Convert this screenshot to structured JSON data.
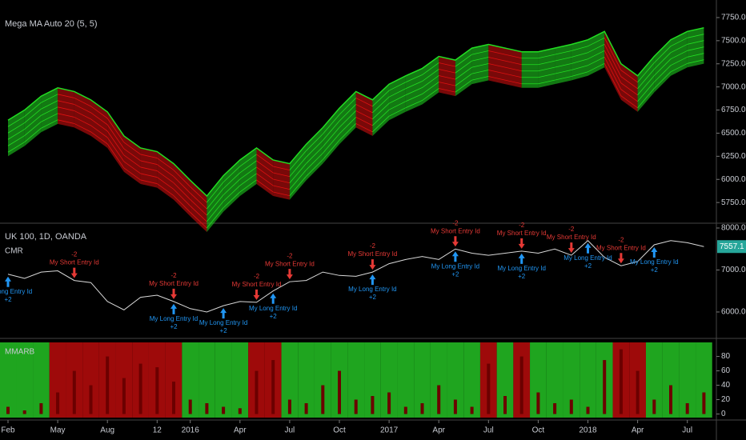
{
  "chart_data": [
    {
      "type": "ribbon",
      "title": "Mega MA Auto 20 (5, 5)",
      "values": [
        6640,
        6750,
        6900,
        6990,
        6950,
        6860,
        6730,
        6470,
        6340,
        6300,
        6170,
        5990,
        5820,
        6040,
        6210,
        6340,
        6210,
        6170,
        6380,
        6560,
        6770,
        6950,
        6860,
        7030,
        7120,
        7200,
        7330,
        7290,
        7420,
        7460,
        7420,
        7380,
        7380,
        7420,
        7460,
        7510,
        7600,
        7250,
        7120,
        7330,
        7510,
        7600,
        7640
      ],
      "up_color": "#22dd22",
      "down_color": "#dd1111",
      "ylim": [
        5535,
        7940
      ],
      "yticks": [
        {
          "value": 5750,
          "label": "5750.0"
        },
        {
          "value": 6000,
          "label": "6000.0"
        },
        {
          "value": 6250,
          "label": "6250.0"
        },
        {
          "value": 6500,
          "label": "6500.0"
        },
        {
          "value": 6750,
          "label": "6750.0"
        },
        {
          "value": 7000,
          "label": "7000.0"
        },
        {
          "value": 7250,
          "label": "7250.0"
        },
        {
          "value": 7500,
          "label": "7500.0"
        },
        {
          "value": 7750,
          "label": "7750.0"
        }
      ]
    },
    {
      "type": "line",
      "title": "UK 100, 1D, OANDA",
      "subtitle": "CMR",
      "values": [
        6900,
        6800,
        6950,
        6980,
        6750,
        6700,
        6250,
        6050,
        6350,
        6400,
        6250,
        6080,
        6000,
        6150,
        6250,
        6230,
        6500,
        6720,
        6750,
        6950,
        6870,
        6850,
        6950,
        7150,
        7250,
        7320,
        7250,
        7500,
        7400,
        7350,
        7400,
        7450,
        7400,
        7500,
        7350,
        7700,
        7300,
        7100,
        7200,
        7600,
        7700,
        7650,
        7557.1
      ],
      "color": "#d8d8d8",
      "badge_color": "#26a69a",
      "ylim": [
        5390,
        8095
      ],
      "yticks": [
        {
          "value": 6000,
          "label": "6000.0"
        },
        {
          "value": 7000,
          "label": "7000.0"
        },
        {
          "value": 8000,
          "label": "8000.0"
        }
      ],
      "short_color": "#e53935",
      "long_color": "#2196f3",
      "signals": [
        {
          "i": 0,
          "side": "long",
          "label": "My Long Entry Id",
          "qty": "+2"
        },
        {
          "i": 4,
          "side": "short",
          "label": "My Short Entry Id",
          "qty": "-2"
        },
        {
          "i": 10,
          "side": "short",
          "label": "My Short Entry Id",
          "qty": "-2"
        },
        {
          "i": 10,
          "side": "long",
          "label": "My Long Entry Id",
          "qty": "+2"
        },
        {
          "i": 13,
          "side": "long",
          "label": "My Long Entry Id",
          "qty": "+2"
        },
        {
          "i": 15,
          "side": "short",
          "label": "My Short Entry Id",
          "qty": "-2"
        },
        {
          "i": 16,
          "side": "long",
          "label": "My Long Entry Id",
          "qty": "+2"
        },
        {
          "i": 17,
          "side": "short",
          "label": "My Short Entry Id",
          "qty": "-2"
        },
        {
          "i": 22,
          "side": "short",
          "label": "My Short Entry Id",
          "qty": "-2"
        },
        {
          "i": 22,
          "side": "long",
          "label": "My Long Entry Id",
          "qty": "+2"
        },
        {
          "i": 27,
          "side": "short",
          "label": "My Short Entry Id",
          "qty": "-2"
        },
        {
          "i": 27,
          "side": "long",
          "label": "My Long Entry Id",
          "qty": "+2"
        },
        {
          "i": 31,
          "side": "short",
          "label": "My Short Entry Id",
          "qty": "-2"
        },
        {
          "i": 31,
          "side": "long",
          "label": "My Long Entry Id",
          "qty": "+2"
        },
        {
          "i": 34,
          "side": "short",
          "label": "My Short Entry Id",
          "qty": "-2"
        },
        {
          "i": 35,
          "side": "long",
          "label": "My Long Entry Id",
          "qty": "+2"
        },
        {
          "i": 37,
          "side": "short",
          "label": "My Short Entry Id",
          "qty": "-2"
        },
        {
          "i": 39,
          "side": "long",
          "label": "My Long Entry Id",
          "qty": "+2"
        }
      ]
    },
    {
      "type": "bar",
      "title": "MMARB",
      "categories": [
        "Feb",
        null,
        null,
        "May",
        null,
        null,
        "Aug",
        null,
        null,
        "12",
        null,
        "2016",
        null,
        null,
        "Apr",
        null,
        null,
        "Jul",
        null,
        null,
        "Oct",
        null,
        null,
        "2017",
        null,
        null,
        "Apr",
        null,
        null,
        "Jul",
        null,
        null,
        "Oct",
        null,
        null,
        "2018",
        null,
        null,
        "Apr",
        null,
        null,
        "Jul",
        null
      ],
      "values": [
        10,
        5,
        15,
        30,
        60,
        40,
        80,
        50,
        70,
        65,
        45,
        20,
        15,
        10,
        8,
        60,
        75,
        20,
        15,
        40,
        60,
        20,
        25,
        30,
        10,
        15,
        40,
        20,
        10,
        70,
        25,
        80,
        30,
        15,
        20,
        10,
        75,
        90,
        60,
        20,
        40,
        15,
        30
      ],
      "color": "#6b0000",
      "bands": [
        "#1fa51f",
        "#1fa51f",
        "#1fa51f",
        "#9e0a0a",
        "#9e0a0a",
        "#9e0a0a",
        "#9e0a0a",
        "#9e0a0a",
        "#9e0a0a",
        "#9e0a0a",
        "#9e0a0a",
        "#1fa51f",
        "#1fa51f",
        "#1fa51f",
        "#1fa51f",
        "#9e0a0a",
        "#9e0a0a",
        "#1fa51f",
        "#1fa51f",
        "#1fa51f",
        "#1fa51f",
        "#1fa51f",
        "#1fa51f",
        "#1fa51f",
        "#1fa51f",
        "#1fa51f",
        "#1fa51f",
        "#1fa51f",
        "#1fa51f",
        "#9e0a0a",
        "#1fa51f",
        "#9e0a0a",
        "#1fa51f",
        "#1fa51f",
        "#1fa51f",
        "#1fa51f",
        "#1fa51f",
        "#9e0a0a",
        "#9e0a0a",
        "#1fa51f",
        "#1fa51f",
        "#1fa51f",
        "#1fa51f"
      ],
      "ylim": [
        -5,
        104
      ],
      "yticks": [
        0,
        20,
        40,
        60,
        80
      ]
    }
  ]
}
